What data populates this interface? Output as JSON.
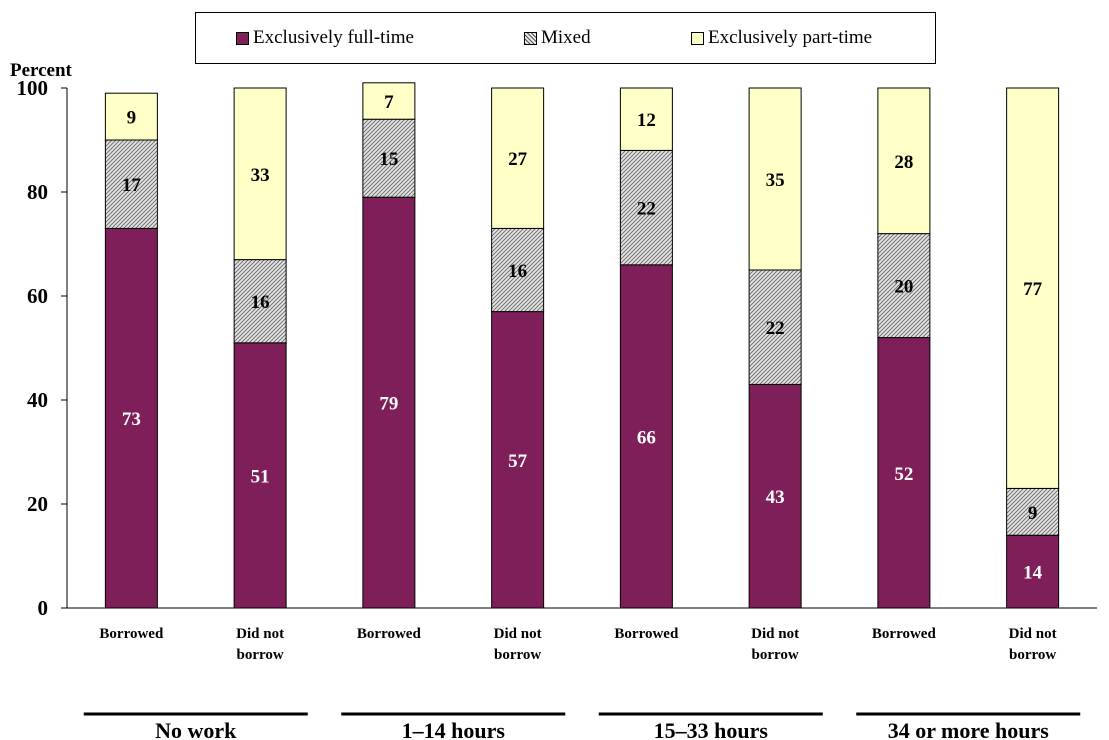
{
  "chart_data": {
    "type": "bar",
    "stacked": true,
    "ylabel": "Percent",
    "ylim": [
      0,
      100
    ],
    "yticks": [
      0,
      20,
      40,
      60,
      80,
      100
    ],
    "categories": [
      "Borrowed",
      "Did not borrow",
      "Borrowed",
      "Did not borrow",
      "Borrowed",
      "Did not borrow",
      "Borrowed",
      "Did not borrow"
    ],
    "groups": [
      "No work",
      "1–14 hours",
      "15–33 hours",
      "34 or more hours"
    ],
    "series": [
      {
        "name": "Exclusively full-time",
        "color": "#7f1f5a",
        "label_color": "#ffffff",
        "values": [
          73,
          51,
          79,
          57,
          66,
          43,
          52,
          14
        ]
      },
      {
        "name": "Mixed",
        "color": "#d0d0d0",
        "pattern": "crosshatch",
        "label_color": "#000000",
        "values": [
          17,
          16,
          15,
          16,
          22,
          22,
          20,
          9
        ]
      },
      {
        "name": "Exclusively part-time",
        "color": "#ffffc8",
        "label_color": "#000000",
        "values": [
          9,
          33,
          7,
          27,
          12,
          35,
          28,
          77
        ]
      }
    ],
    "legend": "top"
  }
}
